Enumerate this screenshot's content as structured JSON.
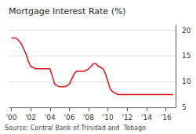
{
  "chart_data": {
    "type": "line",
    "title": "Mortgage Interest Rate (%)",
    "source": "Source: Central Bank of Trinidad and  Tobago",
    "color": "#dd1111",
    "grid": true,
    "xlim": [
      1999.8,
      2017.0
    ],
    "xticks": [
      {
        "value": 2000,
        "label": "'00"
      },
      {
        "value": 2002,
        "label": "'02"
      },
      {
        "value": 2004,
        "label": "'04"
      },
      {
        "value": 2006,
        "label": "'06"
      },
      {
        "value": 2008,
        "label": "'08"
      },
      {
        "value": 2010,
        "label": "'10"
      },
      {
        "value": 2012,
        "label": "'12"
      },
      {
        "value": 2014,
        "label": "'14"
      },
      {
        "value": 2016,
        "label": "'16"
      }
    ],
    "ylim": [
      5,
      21
    ],
    "yticks": [
      5,
      10,
      15,
      20
    ],
    "x": [
      2000.0,
      2000.25,
      2000.5,
      2000.75,
      2001.0,
      2001.25,
      2001.5,
      2001.75,
      2002.0,
      2002.25,
      2002.5,
      2002.75,
      2003.0,
      2003.25,
      2003.5,
      2003.75,
      2004.0,
      2004.25,
      2004.5,
      2004.75,
      2005.0,
      2005.25,
      2005.5,
      2005.75,
      2006.0,
      2006.25,
      2006.5,
      2006.75,
      2007.0,
      2007.25,
      2007.5,
      2007.75,
      2008.0,
      2008.25,
      2008.5,
      2008.75,
      2009.0,
      2009.25,
      2009.5,
      2009.75,
      2010.0,
      2010.25,
      2010.5,
      2010.75,
      2011.0,
      2011.25,
      2011.5,
      2011.75,
      2012.0,
      2012.5,
      2013.0,
      2013.5,
      2014.0,
      2014.5,
      2015.0,
      2015.5,
      2016.0,
      2016.75
    ],
    "values": [
      18.5,
      18.5,
      18.5,
      18.0,
      17.5,
      16.5,
      15.5,
      14.0,
      13.0,
      12.8,
      12.5,
      12.5,
      12.5,
      12.5,
      12.5,
      12.5,
      12.5,
      11.0,
      9.5,
      9.2,
      9.0,
      9.0,
      9.0,
      9.2,
      9.5,
      10.5,
      11.5,
      12.0,
      12.0,
      12.0,
      12.0,
      12.2,
      12.5,
      13.0,
      13.5,
      13.5,
      13.0,
      12.8,
      12.5,
      11.5,
      10.0,
      8.5,
      8.0,
      7.8,
      7.5,
      7.5,
      7.5,
      7.5,
      7.5,
      7.5,
      7.5,
      7.5,
      7.5,
      7.5,
      7.5,
      7.5,
      7.5,
      7.5
    ]
  }
}
